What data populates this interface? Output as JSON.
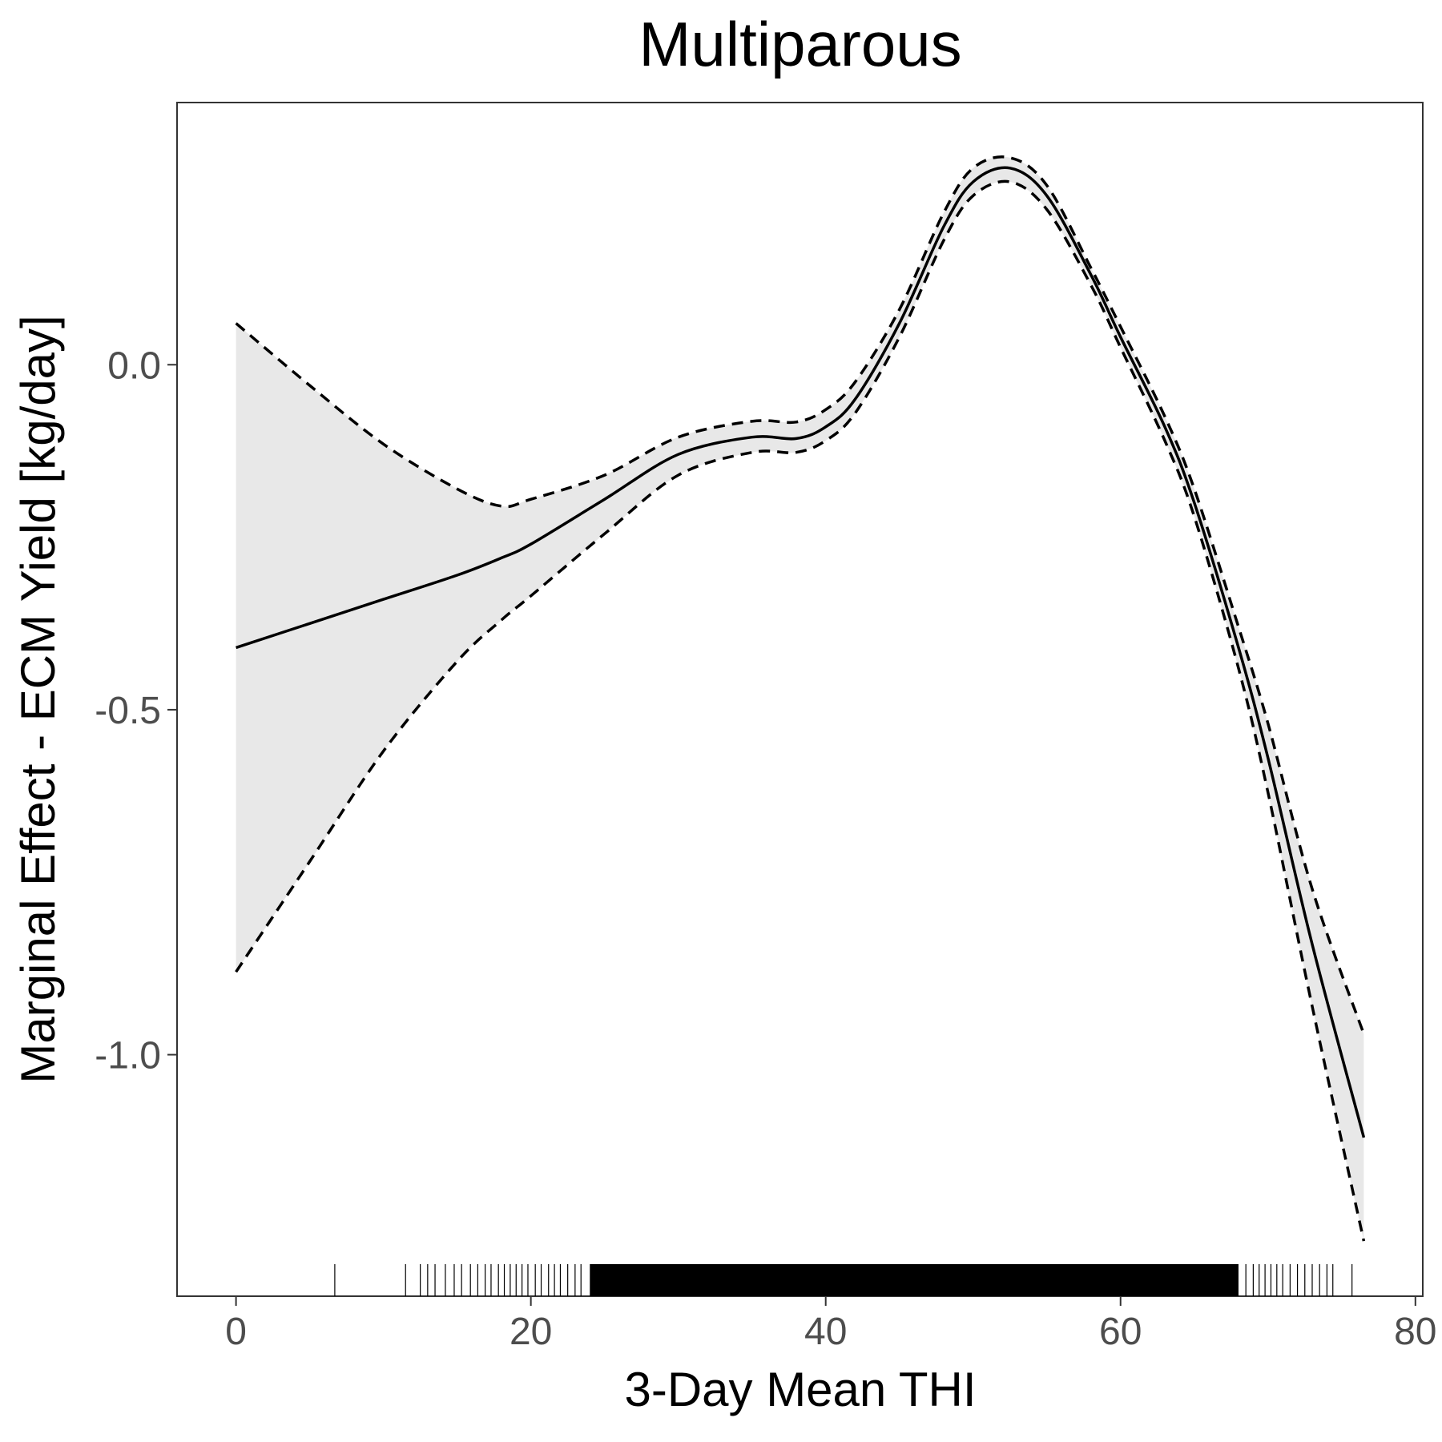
{
  "chart_data": {
    "type": "line",
    "title": "Multiparous",
    "xlabel": "3-Day Mean THI",
    "ylabel": "Marginal Effect - ECM Yield [kg/day]",
    "xlim": [
      -4,
      80.5
    ],
    "ylim": [
      -1.35,
      0.38
    ],
    "x_ticks": [
      0,
      20,
      40,
      60,
      80
    ],
    "x_tick_labels": [
      "0",
      "20",
      "40",
      "60",
      "80"
    ],
    "y_ticks": [
      0.0,
      -0.5,
      -1.0
    ],
    "y_tick_labels": [
      "0.0",
      "-0.5",
      "-1.0"
    ],
    "grid": false,
    "legend": "none",
    "colors": {
      "line": "#000000",
      "ribbon": "#e8e8e8",
      "text": "#000000",
      "tick_text": "#4d4d4d",
      "border": "#333333"
    },
    "series": [
      {
        "role": "estimate",
        "style": "solid",
        "x": [
          0,
          5,
          10,
          15,
          18,
          20,
          25,
          30,
          35,
          38,
          40,
          42,
          45,
          48,
          50,
          52.5,
          55,
          58,
          60,
          63,
          65,
          68,
          70,
          73,
          76.5
        ],
        "y": [
          -0.41,
          -0.375,
          -0.34,
          -0.305,
          -0.28,
          -0.26,
          -0.195,
          -0.13,
          -0.105,
          -0.107,
          -0.09,
          -0.05,
          0.06,
          0.2,
          0.265,
          0.285,
          0.245,
          0.13,
          0.04,
          -0.09,
          -0.2,
          -0.41,
          -0.57,
          -0.84,
          -1.12
        ]
      },
      {
        "role": "upper-ci",
        "style": "dashed",
        "x": [
          0,
          5,
          10,
          15,
          18,
          20,
          25,
          30,
          35,
          38,
          40,
          42,
          45,
          48,
          50,
          52.5,
          55,
          58,
          60,
          63,
          65,
          68,
          70,
          73,
          76.5
        ],
        "y": [
          0.06,
          -0.03,
          -0.115,
          -0.18,
          -0.205,
          -0.195,
          -0.16,
          -0.105,
          -0.082,
          -0.083,
          -0.065,
          -0.025,
          0.08,
          0.22,
          0.285,
          0.3,
          0.26,
          0.14,
          0.055,
          -0.075,
          -0.18,
          -0.38,
          -0.52,
          -0.76,
          -0.97
        ]
      },
      {
        "role": "lower-ci",
        "style": "dashed",
        "x": [
          0,
          5,
          10,
          15,
          18,
          20,
          25,
          30,
          35,
          38,
          40,
          42,
          45,
          48,
          50,
          52.5,
          55,
          58,
          60,
          63,
          65,
          68,
          70,
          73,
          76.5
        ],
        "y": [
          -0.88,
          -0.72,
          -0.56,
          -0.43,
          -0.37,
          -0.335,
          -0.245,
          -0.16,
          -0.127,
          -0.127,
          -0.11,
          -0.07,
          0.04,
          0.18,
          0.245,
          0.265,
          0.225,
          0.115,
          0.025,
          -0.11,
          -0.22,
          -0.44,
          -0.62,
          -0.93,
          -1.27
        ]
      }
    ],
    "rug": {
      "isolated_x": [
        6.7,
        11.5,
        12.5,
        13.0,
        13.5,
        14.2,
        14.8,
        15.3,
        15.9,
        16.4,
        16.9,
        17.3,
        17.8,
        18.2,
        18.6,
        19.0,
        19.4,
        19.8,
        20.3,
        20.7,
        21.2,
        21.6,
        22.0,
        22.5,
        23.0,
        23.4,
        68.5,
        69.0,
        69.4,
        69.8,
        70.2,
        70.6,
        71.0,
        71.5,
        72.0,
        72.5,
        73.0,
        73.5,
        74.0,
        74.4,
        75.7
      ],
      "dense_range": [
        24,
        68
      ]
    }
  }
}
